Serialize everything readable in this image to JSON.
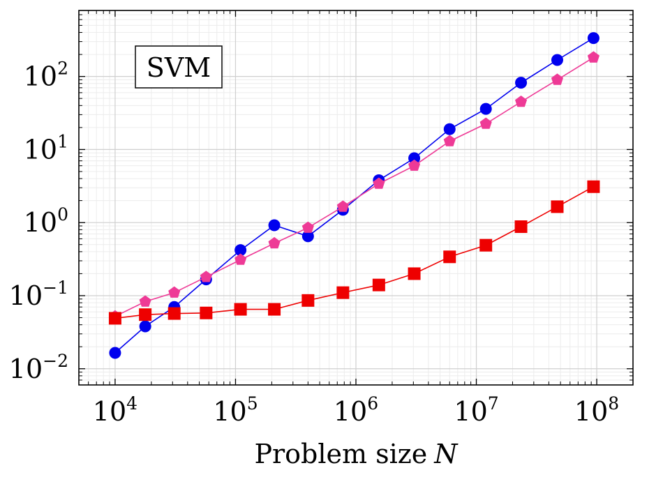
{
  "chart_data": {
    "type": "line",
    "title": "",
    "xlabel": "Problem size",
    "xlabel_var": "N",
    "ylabel": "",
    "xscale": "log",
    "yscale": "log",
    "xlim": [
      5000,
      200000000
    ],
    "ylim": [
      0.006,
      800
    ],
    "grid": true,
    "annotation": "SVM",
    "annotation_placement": "top-left",
    "x_ticks": [
      {
        "base": "10",
        "exp": "4",
        "value": 10000
      },
      {
        "base": "10",
        "exp": "5",
        "value": 100000
      },
      {
        "base": "10",
        "exp": "6",
        "value": 1000000
      },
      {
        "base": "10",
        "exp": "7",
        "value": 10000000
      },
      {
        "base": "10",
        "exp": "8",
        "value": 100000000
      }
    ],
    "y_ticks": [
      {
        "base": "10",
        "exp": "−2",
        "value": 0.01
      },
      {
        "base": "10",
        "exp": "−1",
        "value": 0.1
      },
      {
        "base": "10",
        "exp": "0",
        "value": 1
      },
      {
        "base": "10",
        "exp": "1",
        "value": 10
      },
      {
        "base": "10",
        "exp": "2",
        "value": 100
      }
    ],
    "series": [
      {
        "name": "blue-circles",
        "color": "#0000ee",
        "marker": "circle",
        "points": [
          [
            10000,
            0.0165
          ],
          [
            17800,
            0.038
          ],
          [
            31000,
            0.07
          ],
          [
            57000,
            0.167
          ],
          [
            110000,
            0.42
          ],
          [
            210000,
            0.92
          ],
          [
            400000,
            0.65
          ],
          [
            780000,
            1.5
          ],
          [
            1550000,
            3.8
          ],
          [
            3050000,
            7.6
          ],
          [
            6000000,
            19.0
          ],
          [
            12000000,
            36.0
          ],
          [
            23500000,
            82.0
          ],
          [
            47000000,
            168.0
          ],
          [
            94000000,
            335.0
          ]
        ]
      },
      {
        "name": "pink-pentagons",
        "color": "#ee3a96",
        "marker": "pentagon",
        "points": [
          [
            10000,
            0.052
          ],
          [
            17800,
            0.083
          ],
          [
            31000,
            0.11
          ],
          [
            57000,
            0.18
          ],
          [
            110000,
            0.31
          ],
          [
            210000,
            0.52
          ],
          [
            400000,
            0.85
          ],
          [
            780000,
            1.65
          ],
          [
            1550000,
            3.4
          ],
          [
            3050000,
            6.0
          ],
          [
            6000000,
            13.0
          ],
          [
            12000000,
            22.5
          ],
          [
            23500000,
            45.0
          ],
          [
            47000000,
            90.0
          ],
          [
            94000000,
            182.0
          ]
        ]
      },
      {
        "name": "red-squares",
        "color": "#ee0000",
        "marker": "square",
        "points": [
          [
            10000,
            0.049
          ],
          [
            17800,
            0.055
          ],
          [
            31000,
            0.057
          ],
          [
            57000,
            0.058
          ],
          [
            110000,
            0.065
          ],
          [
            210000,
            0.065
          ],
          [
            400000,
            0.086
          ],
          [
            780000,
            0.11
          ],
          [
            1550000,
            0.14
          ],
          [
            3050000,
            0.2
          ],
          [
            6000000,
            0.34
          ],
          [
            12000000,
            0.49
          ],
          [
            23500000,
            0.88
          ],
          [
            47000000,
            1.65
          ],
          [
            94000000,
            3.1
          ]
        ]
      }
    ]
  }
}
